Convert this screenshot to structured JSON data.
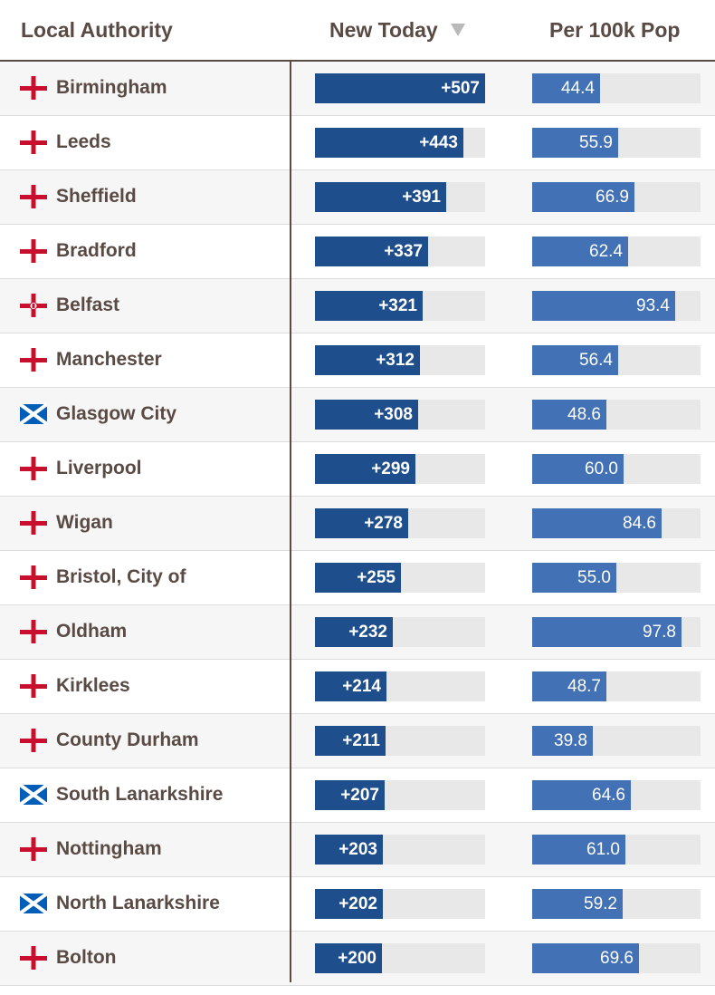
{
  "headers": {
    "local_authority": "Local Authority",
    "new_today": "New Today",
    "per_100k": "Per 100k Pop"
  },
  "colors": {
    "new_bar": "#1f4e8c",
    "per_bar": "#4272b5",
    "track": "#e8e8e8",
    "text": "#5a4a44",
    "england_cross": "#c8102e",
    "scotland_blue": "#005eb8"
  },
  "chart_data": {
    "type": "table",
    "title": "",
    "columns": [
      "Local Authority",
      "New Today",
      "Per 100k Pop"
    ],
    "sorted_by": "New Today",
    "new_today_max": 507,
    "per_100k_max": 110,
    "rows": [
      {
        "name": "Birmingham",
        "flag": "england-flag-icon",
        "new_today": 507,
        "new_label": "+507",
        "per_100k": 44.4,
        "per_label": "44.4"
      },
      {
        "name": "Leeds",
        "flag": "england-flag-icon",
        "new_today": 443,
        "new_label": "+443",
        "per_100k": 55.9,
        "per_label": "55.9"
      },
      {
        "name": "Sheffield",
        "flag": "england-flag-icon",
        "new_today": 391,
        "new_label": "+391",
        "per_100k": 66.9,
        "per_label": "66.9"
      },
      {
        "name": "Bradford",
        "flag": "england-flag-icon",
        "new_today": 337,
        "new_label": "+337",
        "per_100k": 62.4,
        "per_label": "62.4"
      },
      {
        "name": "Belfast",
        "flag": "northern-ireland-flag-icon",
        "new_today": 321,
        "new_label": "+321",
        "per_100k": 93.4,
        "per_label": "93.4"
      },
      {
        "name": "Manchester",
        "flag": "england-flag-icon",
        "new_today": 312,
        "new_label": "+312",
        "per_100k": 56.4,
        "per_label": "56.4"
      },
      {
        "name": "Glasgow City",
        "flag": "scotland-flag-icon",
        "new_today": 308,
        "new_label": "+308",
        "per_100k": 48.6,
        "per_label": "48.6"
      },
      {
        "name": "Liverpool",
        "flag": "england-flag-icon",
        "new_today": 299,
        "new_label": "+299",
        "per_100k": 60.0,
        "per_label": "60.0"
      },
      {
        "name": "Wigan",
        "flag": "england-flag-icon",
        "new_today": 278,
        "new_label": "+278",
        "per_100k": 84.6,
        "per_label": "84.6"
      },
      {
        "name": "Bristol, City of",
        "flag": "england-flag-icon",
        "new_today": 255,
        "new_label": "+255",
        "per_100k": 55.0,
        "per_label": "55.0"
      },
      {
        "name": "Oldham",
        "flag": "england-flag-icon",
        "new_today": 232,
        "new_label": "+232",
        "per_100k": 97.8,
        "per_label": "97.8"
      },
      {
        "name": "Kirklees",
        "flag": "england-flag-icon",
        "new_today": 214,
        "new_label": "+214",
        "per_100k": 48.7,
        "per_label": "48.7"
      },
      {
        "name": "County Durham",
        "flag": "england-flag-icon",
        "new_today": 211,
        "new_label": "+211",
        "per_100k": 39.8,
        "per_label": "39.8"
      },
      {
        "name": "South Lanarkshire",
        "flag": "scotland-flag-icon",
        "new_today": 207,
        "new_label": "+207",
        "per_100k": 64.6,
        "per_label": "64.6"
      },
      {
        "name": "Nottingham",
        "flag": "england-flag-icon",
        "new_today": 203,
        "new_label": "+203",
        "per_100k": 61.0,
        "per_label": "61.0"
      },
      {
        "name": "North Lanarkshire",
        "flag": "scotland-flag-icon",
        "new_today": 202,
        "new_label": "+202",
        "per_100k": 59.2,
        "per_label": "59.2"
      },
      {
        "name": "Bolton",
        "flag": "england-flag-icon",
        "new_today": 200,
        "new_label": "+200",
        "per_100k": 69.6,
        "per_label": "69.6"
      }
    ]
  }
}
